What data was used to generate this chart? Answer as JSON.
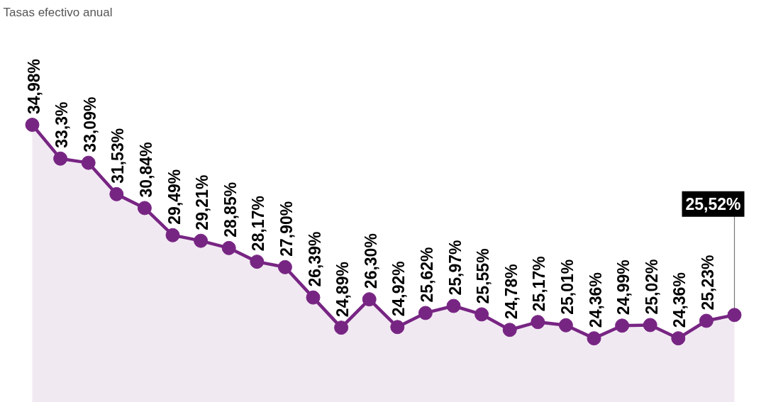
{
  "chart_data": {
    "type": "area",
    "title": "Tasas efectivo anual",
    "categories": [
      null,
      null,
      null,
      null,
      null,
      null,
      null,
      null,
      null,
      null,
      null,
      null,
      null,
      null,
      null,
      null,
      null,
      null,
      null,
      null,
      null,
      null,
      null,
      null,
      null,
      null
    ],
    "values": [
      34.98,
      33.3,
      33.09,
      31.53,
      30.84,
      29.49,
      29.21,
      28.85,
      28.17,
      27.9,
      26.39,
      24.89,
      26.3,
      24.92,
      25.62,
      25.97,
      25.55,
      24.78,
      25.17,
      25.01,
      24.36,
      24.99,
      25.02,
      24.36,
      25.23,
      25.52
    ],
    "value_labels": [
      "34,98%",
      "33,3%",
      "33,09%",
      "31,53%",
      "30,84%",
      "29,49%",
      "29,21%",
      "28,85%",
      "28,17%",
      "27,90%",
      "26,39%",
      "24,89%",
      "26,30%",
      "24,92%",
      "25,62%",
      "25,97%",
      "25,55%",
      "24,78%",
      "25,17%",
      "25,01%",
      "24,36%",
      "24,99%",
      "25,02%",
      "24,36%",
      "25,23%",
      "25,52%"
    ],
    "color": "#772583",
    "marker": "circle"
  }
}
